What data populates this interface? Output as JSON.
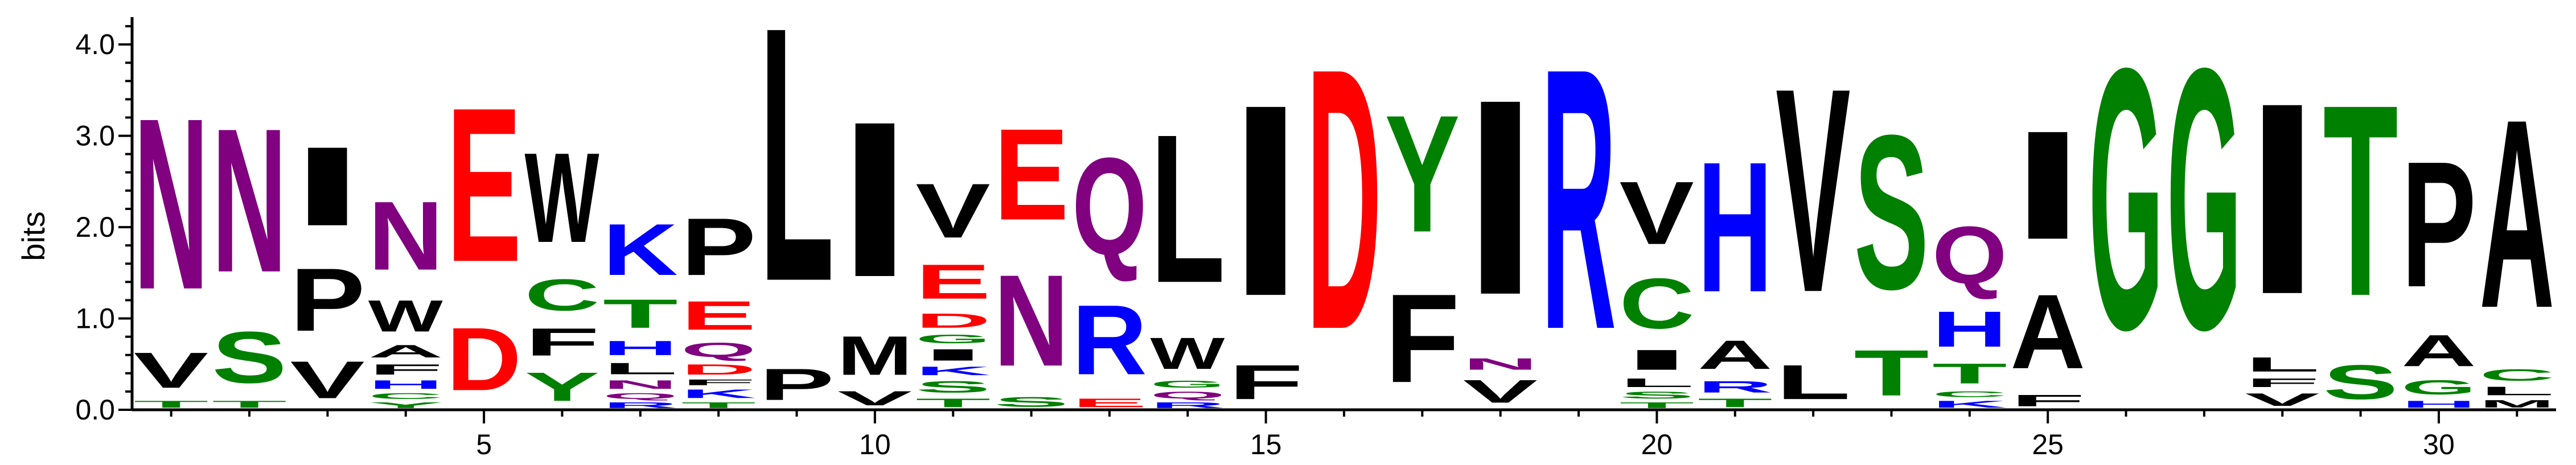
{
  "chart_data": {
    "type": "sequence-logo",
    "ylabel": "bits",
    "ylim": [
      0,
      4.3
    ],
    "yticks": [
      "0.0",
      "1.0",
      "2.0",
      "3.0",
      "4.0"
    ],
    "xlim": [
      0.5,
      31.5
    ],
    "xticks": [
      "5",
      "10",
      "15",
      "20",
      "25",
      "30"
    ],
    "grid": false,
    "colors": {
      "N": "#800080",
      "Q": "#800080",
      "S": "#008000",
      "T": "#008000",
      "G": "#008000",
      "C": "#008000",
      "Y": "#008000",
      "D": "#ff0000",
      "E": "#ff0000",
      "K": "#0000ff",
      "R": "#0000ff",
      "H": "#0000ff",
      "A": "#000000",
      "V": "#000000",
      "L": "#000000",
      "I": "#000000",
      "P": "#000000",
      "F": "#000000",
      "M": "#000000",
      "W": "#000000"
    },
    "positions": [
      {
        "pos": 1,
        "letters": [
          [
            "T",
            0.12
          ],
          [
            "V",
            0.62
          ],
          [
            "N",
            3.0
          ]
        ]
      },
      {
        "pos": 2,
        "letters": [
          [
            "T",
            0.12
          ],
          [
            "S",
            0.9
          ],
          [
            "N",
            2.52
          ]
        ]
      },
      {
        "pos": 3,
        "letters": [
          [
            "V",
            0.65
          ],
          [
            "P",
            1.1
          ],
          [
            "I",
            1.38
          ]
        ]
      },
      {
        "pos": 4,
        "letters": [
          [
            "Y",
            0.1
          ],
          [
            "C",
            0.1
          ],
          [
            "H",
            0.15
          ],
          [
            "F",
            0.18
          ],
          [
            "A",
            0.22
          ],
          [
            "W",
            0.55
          ],
          [
            "N",
            1.2
          ]
        ]
      },
      {
        "pos": 5,
        "letters": [
          [
            "D",
            1.1
          ],
          [
            "E",
            2.7
          ]
        ]
      },
      {
        "pos": 6,
        "letters": [
          [
            "Y",
            0.5
          ],
          [
            "F",
            0.48
          ],
          [
            "C",
            0.55
          ],
          [
            "W",
            1.57
          ]
        ]
      },
      {
        "pos": 7,
        "letters": [
          [
            "R",
            0.1
          ],
          [
            "Q",
            0.1
          ],
          [
            "N",
            0.15
          ],
          [
            "L",
            0.2
          ],
          [
            "H",
            0.25
          ],
          [
            "T",
            0.5
          ],
          [
            "K",
            0.9
          ]
        ]
      },
      {
        "pos": 8,
        "letters": [
          [
            "T",
            0.1
          ],
          [
            "K",
            0.15
          ],
          [
            "F",
            0.1
          ],
          [
            "D",
            0.18
          ],
          [
            "Q",
            0.25
          ],
          [
            "E",
            0.5
          ],
          [
            "P",
            1.0
          ]
        ]
      },
      {
        "pos": 9,
        "letters": [
          [
            "P",
            0.55
          ],
          [
            "L",
            4.45
          ]
        ]
      },
      {
        "pos": 10,
        "letters": [
          [
            "V",
            0.25
          ],
          [
            "M",
            0.68
          ],
          [
            "I",
            2.72
          ]
        ]
      },
      {
        "pos": 11,
        "letters": [
          [
            "T",
            0.15
          ],
          [
            "S",
            0.2
          ],
          [
            "K",
            0.15
          ],
          [
            "I",
            0.2
          ],
          [
            "G",
            0.15
          ],
          [
            "D",
            0.25
          ],
          [
            "E",
            0.6
          ],
          [
            "V",
            0.95
          ]
        ]
      },
      {
        "pos": 12,
        "letters": [
          [
            "S",
            0.17
          ],
          [
            "N",
            1.6
          ],
          [
            "E",
            1.6
          ]
        ]
      },
      {
        "pos": 13,
        "letters": [
          [
            "E",
            0.15
          ],
          [
            "R",
            1.22
          ],
          [
            "Q",
            1.7
          ]
        ]
      },
      {
        "pos": 14,
        "letters": [
          [
            "R",
            0.1
          ],
          [
            "Q",
            0.12
          ],
          [
            "G",
            0.12
          ],
          [
            "W",
            0.55
          ],
          [
            "L",
            2.6
          ]
        ]
      },
      {
        "pos": 15,
        "letters": [
          [
            "F",
            0.6
          ],
          [
            "I",
            3.35
          ]
        ]
      },
      {
        "pos": 16,
        "letters": [
          [
            "D",
            4.57
          ]
        ]
      },
      {
        "pos": 17,
        "letters": [
          [
            "F",
            1.55
          ],
          [
            "Y",
            2.05
          ]
        ]
      },
      {
        "pos": 18,
        "letters": [
          [
            "V",
            0.4
          ],
          [
            "N",
            0.2
          ],
          [
            "I",
            3.42
          ]
        ]
      },
      {
        "pos": 19,
        "letters": [
          [
            "R",
            4.57
          ]
        ]
      },
      {
        "pos": 20,
        "letters": [
          [
            "T",
            0.1
          ],
          [
            "S",
            0.12
          ],
          [
            "L",
            0.15
          ],
          [
            "I",
            0.35
          ],
          [
            "C",
            0.88
          ],
          [
            "V",
            1.1
          ]
        ]
      },
      {
        "pos": 21,
        "letters": [
          [
            "T",
            0.15
          ],
          [
            "R",
            0.2
          ],
          [
            "A",
            0.5
          ],
          [
            "H",
            2.28
          ]
        ]
      },
      {
        "pos": 22,
        "letters": [
          [
            "L",
            0.6
          ],
          [
            "V",
            3.57
          ]
        ]
      },
      {
        "pos": 23,
        "letters": [
          [
            "T",
            0.8
          ],
          [
            "S",
            2.7
          ]
        ]
      },
      {
        "pos": 24,
        "letters": [
          [
            "K",
            0.12
          ],
          [
            "C",
            0.1
          ],
          [
            "T",
            0.35
          ],
          [
            "H",
            0.62
          ],
          [
            "Q",
            1.0
          ]
        ]
      },
      {
        "pos": 25,
        "letters": [
          [
            "F",
            0.2
          ],
          [
            "A",
            1.3
          ],
          [
            "I",
            1.9
          ]
        ]
      },
      {
        "pos": 26,
        "letters": [
          [
            "G",
            4.57
          ]
        ]
      },
      {
        "pos": 27,
        "letters": [
          [
            "G",
            4.57
          ]
        ]
      },
      {
        "pos": 28,
        "letters": [
          [
            "V",
            0.22
          ],
          [
            "F",
            0.15
          ],
          [
            "L",
            0.25
          ],
          [
            "I",
            3.35
          ]
        ]
      },
      {
        "pos": 29,
        "letters": [
          [
            "S",
            0.6
          ],
          [
            "T",
            3.35
          ]
        ]
      },
      {
        "pos": 30,
        "letters": [
          [
            "H",
            0.12
          ],
          [
            "G",
            0.25
          ],
          [
            "A",
            0.55
          ],
          [
            "P",
            2.2
          ]
        ]
      },
      {
        "pos": 31,
        "letters": [
          [
            "M",
            0.13
          ],
          [
            "L",
            0.15
          ],
          [
            "C",
            0.2
          ],
          [
            "A",
            3.3
          ]
        ]
      }
    ]
  }
}
